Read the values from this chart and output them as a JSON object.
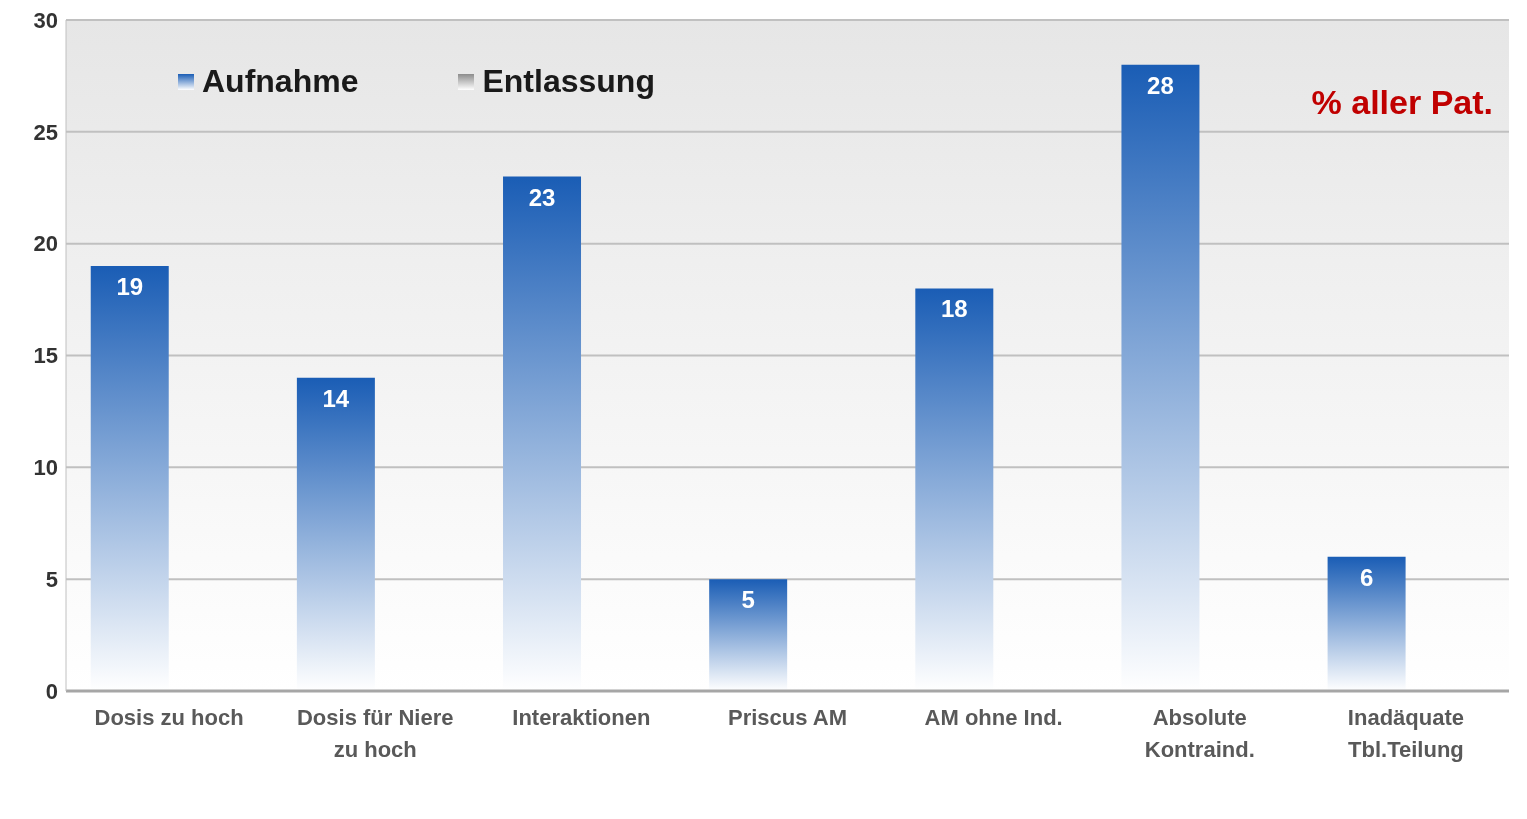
{
  "chart_data": {
    "type": "bar",
    "categories": [
      "Dosis zu hoch",
      "Dosis für Niere zu hoch",
      "Interaktionen",
      "Priscus AM",
      "AM ohne Ind.",
      "Absolute Kontraind.",
      "Inadäquate Tbl.Teilung"
    ],
    "series": [
      {
        "name": "Aufnahme",
        "color": "#1a5db5",
        "values": [
          19,
          14,
          23,
          5,
          18,
          28,
          6
        ]
      },
      {
        "name": "Entlassung",
        "color": "#8c8c8c",
        "values": [
          null,
          null,
          null,
          null,
          null,
          null,
          null
        ]
      }
    ],
    "ylim": [
      0,
      30
    ],
    "yticks": [
      0,
      5,
      10,
      15,
      20,
      25,
      30
    ],
    "grid": "y",
    "legend": "top left",
    "data_labels": true,
    "annotations": [
      "% aller Pat."
    ]
  }
}
